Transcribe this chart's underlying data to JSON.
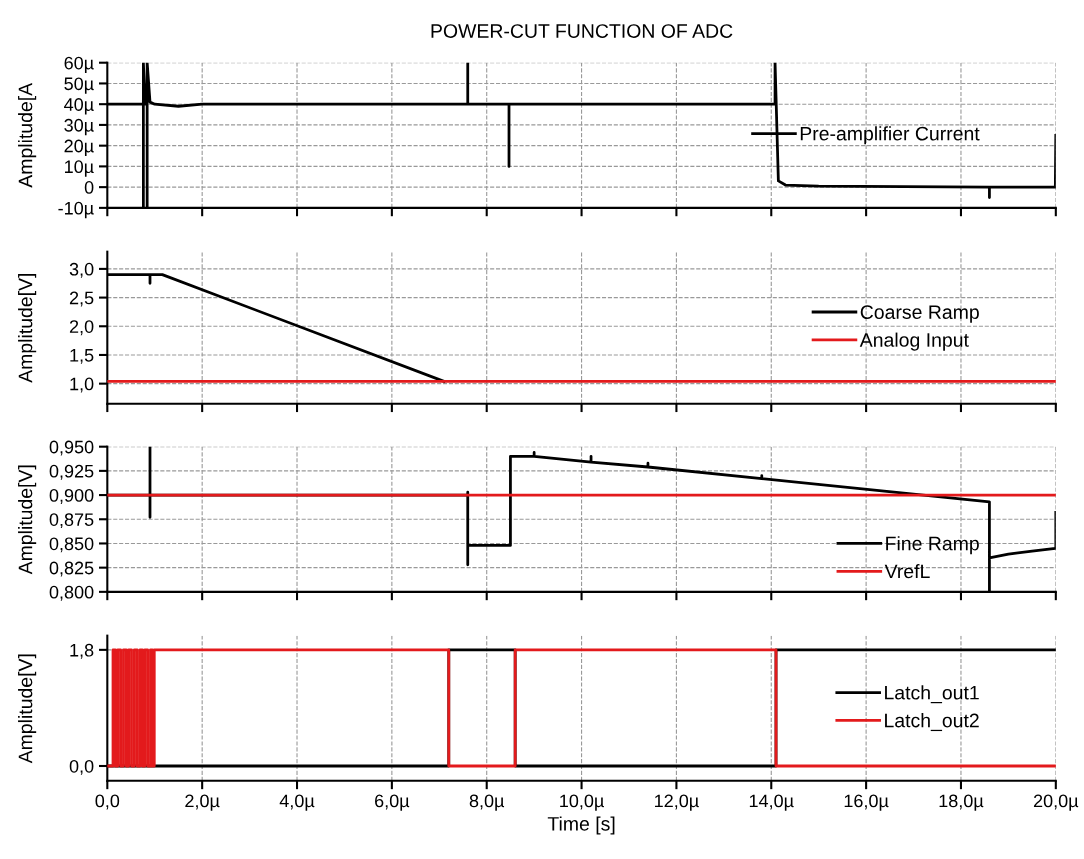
{
  "chart_data": [
    {
      "type": "line",
      "title": "POWER-CUT FUNCTION OF ADC",
      "ylabel": "Amplitude[A",
      "xlim": [
        0,
        20
      ],
      "xticks": [
        {
          "value": 0,
          "label": null
        },
        {
          "value": 2,
          "label": null
        },
        {
          "value": 4,
          "label": null
        },
        {
          "value": 6,
          "label": null
        },
        {
          "value": 8,
          "label": null
        },
        {
          "value": 10,
          "label": null
        },
        {
          "value": 12,
          "label": null
        },
        {
          "value": 14,
          "label": null
        },
        {
          "value": 16,
          "label": null
        },
        {
          "value": 18,
          "label": null
        },
        {
          "value": 20,
          "label": null
        }
      ],
      "ylim": [
        -10,
        60
      ],
      "yticks": [
        {
          "value": -10,
          "label": "-10µ"
        },
        0,
        {
          "value": 10,
          "label": "10µ"
        },
        {
          "value": 20,
          "label": "20µ"
        },
        {
          "value": 30,
          "label": "30µ"
        },
        {
          "value": 40,
          "label": "40µ"
        },
        {
          "value": 50,
          "label": "50µ"
        },
        {
          "value": 60,
          "label": "60µ"
        }
      ],
      "tick_labels": "y",
      "grid": true,
      "legend": "right",
      "series": [
        {
          "name": "Pre-amplifier Current",
          "color": "#000000",
          "x": [
            0,
            0.76,
            0.76,
            0.76,
            0.8,
            0.84,
            0.84,
            0.84,
            0.9,
            1.0,
            1.5,
            2,
            7.6,
            7.6,
            7.6,
            8.47,
            8.47,
            8.47,
            14.08,
            14.08,
            14.15,
            14.3,
            15,
            18.6,
            18.6,
            18.6,
            19.99,
            20
          ],
          "values": [
            40,
            40,
            -10,
            60,
            40,
            40,
            -10,
            60,
            41,
            40,
            39,
            40,
            40,
            60,
            40,
            40,
            10,
            40,
            40,
            60,
            3,
            1,
            0.5,
            0,
            -5,
            0,
            0,
            25
          ]
        }
      ]
    },
    {
      "type": "line",
      "ylabel": "Amplitude[V]",
      "xlim": [
        0,
        20
      ],
      "xticks": [
        {
          "value": 0,
          "label": null
        },
        {
          "value": 2,
          "label": null
        },
        {
          "value": 4,
          "label": null
        },
        {
          "value": 6,
          "label": null
        },
        {
          "value": 8,
          "label": null
        },
        {
          "value": 10,
          "label": null
        },
        {
          "value": 12,
          "label": null
        },
        {
          "value": 14,
          "label": null
        },
        {
          "value": 16,
          "label": null
        },
        {
          "value": 18,
          "label": null
        },
        {
          "value": 20,
          "label": null
        }
      ],
      "ylim": [
        0.65,
        3.3
      ],
      "yticks": [
        {
          "value": 1.0,
          "label": "1,0"
        },
        {
          "value": 1.5,
          "label": "1,5"
        },
        {
          "value": 2.0,
          "label": "2,0"
        },
        {
          "value": 2.5,
          "label": "2,5"
        },
        {
          "value": 3.0,
          "label": "3,0"
        }
      ],
      "tick_labels": "y",
      "grid": true,
      "legend": "right",
      "series": [
        {
          "name": "Coarse Ramp",
          "color": "#000000",
          "x": [
            0,
            0.9,
            0.9,
            0.9,
            1.16,
            7.1
          ],
          "values": [
            2.9,
            2.9,
            2.75,
            2.9,
            2.9,
            1.04
          ]
        },
        {
          "name": "Analog Input",
          "color": "#e31a1c",
          "x": [
            0,
            20
          ],
          "values": [
            1.04,
            1.04
          ]
        }
      ]
    },
    {
      "type": "line",
      "ylabel": "Amplitude[V]",
      "xlim": [
        0,
        20
      ],
      "xticks": [
        {
          "value": 0,
          "label": null
        },
        {
          "value": 2,
          "label": null
        },
        {
          "value": 4,
          "label": null
        },
        {
          "value": 6,
          "label": null
        },
        {
          "value": 8,
          "label": null
        },
        {
          "value": 10,
          "label": null
        },
        {
          "value": 12,
          "label": null
        },
        {
          "value": 14,
          "label": null
        },
        {
          "value": 16,
          "label": null
        },
        {
          "value": 18,
          "label": null
        },
        {
          "value": 20,
          "label": null
        }
      ],
      "ylim": [
        0.8,
        0.95
      ],
      "yticks": [
        {
          "value": 0.8,
          "label": "0,800"
        },
        {
          "value": 0.825,
          "label": "0,825"
        },
        {
          "value": 0.85,
          "label": "0,850"
        },
        {
          "value": 0.875,
          "label": "0,875"
        },
        {
          "value": 0.9,
          "label": "0,900"
        },
        {
          "value": 0.925,
          "label": "0,925"
        },
        {
          "value": 0.95,
          "label": "0,950"
        }
      ],
      "tick_labels": "y",
      "grid": true,
      "legend": "bottom right",
      "series": [
        {
          "name": "Fine Ramp",
          "color": "#000000",
          "x": [
            0,
            0.9,
            0.9,
            0.9,
            0.9,
            7.6,
            7.6,
            7.6,
            7.6,
            8.5,
            8.5,
            9.0,
            9.0,
            9.0,
            10.2,
            10.2,
            10.2,
            11.4,
            11.4,
            11.4,
            13.8,
            13.8,
            13.8,
            18.6,
            18.6,
            18.6,
            19.0,
            19.5,
            19.99,
            20,
            20
          ],
          "values": [
            0.9,
            0.9,
            0.877,
            0.95,
            0.9,
            0.9,
            0.903,
            0.828,
            0.848,
            0.848,
            0.94,
            0.94,
            0.944,
            0.94,
            0.934,
            0.94,
            0.934,
            0.929,
            0.933,
            0.929,
            0.917,
            0.92,
            0.917,
            0.893,
            0.8,
            0.835,
            0.839,
            0.842,
            0.845,
            0.845,
            0.882
          ]
        },
        {
          "name": "VrefL",
          "color": "#e31a1c",
          "x": [
            0,
            20
          ],
          "values": [
            0.9,
            0.9
          ]
        }
      ]
    },
    {
      "type": "line",
      "ylabel": "Amplitude[V]",
      "xlabel": "Time [s]",
      "xlim": [
        0,
        20
      ],
      "xticks": [
        {
          "value": 0,
          "label": "0,0"
        },
        {
          "value": 2,
          "label": "2,0µ"
        },
        {
          "value": 4,
          "label": "4,0µ"
        },
        {
          "value": 6,
          "label": "6,0µ"
        },
        {
          "value": 8,
          "label": "8,0µ"
        },
        {
          "value": 10,
          "label": "10,0µ"
        },
        {
          "value": 12,
          "label": "12,0µ"
        },
        {
          "value": 14,
          "label": "14,0µ"
        },
        {
          "value": 16,
          "label": "16,0µ"
        },
        {
          "value": 18,
          "label": "18,0µ"
        },
        {
          "value": 20,
          "label": "20,0µ"
        }
      ],
      "ylim": [
        -0.23,
        2.02
      ],
      "yticks": [
        {
          "value": 0.0,
          "label": "0,0"
        },
        {
          "value": 1.8,
          "label": "1,8"
        }
      ],
      "grid": true,
      "legend": "right",
      "series": [
        {
          "name": "Latch_out1",
          "color": "#000000",
          "x": [
            0,
            7.2,
            7.2,
            8.6,
            8.6,
            14.1,
            14.1,
            20
          ],
          "values": [
            0,
            0,
            1.8,
            1.8,
            0,
            0,
            1.8,
            1.8
          ]
        },
        {
          "name": "Latch_out2",
          "color": "#e31a1c",
          "x": [
            0,
            0.12,
            0.12,
            0.17,
            0.17,
            0.22,
            0.22,
            0.28,
            0.28,
            0.34,
            0.34,
            0.4,
            0.4,
            0.45,
            0.45,
            0.51,
            0.51,
            0.57,
            0.57,
            0.63,
            0.63,
            0.69,
            0.69,
            0.74,
            0.74,
            0.79,
            0.79,
            0.85,
            0.85,
            0.91,
            0.91,
            0.95,
            0.95,
            0.99,
            0.99,
            7.2,
            7.2,
            8.6,
            8.6,
            14.1,
            14.1,
            20
          ],
          "values": [
            0,
            0,
            1.8,
            1.8,
            0,
            0,
            1.8,
            1.8,
            0,
            0,
            1.8,
            1.8,
            0,
            0,
            1.8,
            1.8,
            0,
            0,
            1.8,
            1.8,
            0,
            0,
            1.8,
            1.8,
            0,
            0,
            1.8,
            1.8,
            0,
            0,
            1.8,
            1.8,
            0,
            0,
            1.8,
            1.8,
            0,
            0,
            1.8,
            1.8,
            0,
            0
          ]
        }
      ]
    }
  ]
}
